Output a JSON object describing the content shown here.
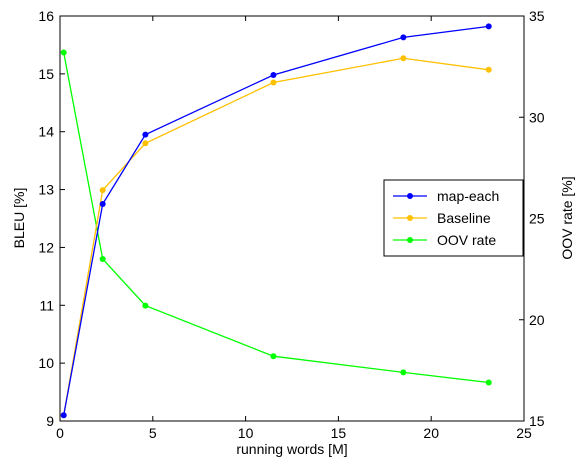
{
  "chart_data": {
    "type": "line",
    "xlabel": "running words [M]",
    "ylabel_left": "BLEU [%]",
    "ylabel_right": "OOV rate [%]",
    "xlim": [
      0,
      25
    ],
    "ylim_left": [
      9,
      16
    ],
    "ylim_right": [
      15,
      35
    ],
    "x_ticks": [
      "0",
      "5",
      "10",
      "15",
      "20",
      "25"
    ],
    "y_ticks_left": [
      "9",
      "10",
      "11",
      "12",
      "13",
      "14",
      "15",
      "16"
    ],
    "y_ticks_right": [
      "15",
      "20",
      "25",
      "30",
      "35"
    ],
    "grid": false,
    "legend_position": "center-right",
    "series": [
      {
        "name": "map-each",
        "color": "#0000ff",
        "axis": "left",
        "x": [
          0.2,
          2.3,
          4.6,
          11.5,
          18.5,
          23.1
        ],
        "y": [
          9.1,
          12.75,
          13.95,
          14.98,
          15.63,
          15.82
        ]
      },
      {
        "name": "Baseline",
        "color": "#ffc000",
        "axis": "left",
        "x": [
          0.2,
          2.3,
          4.6,
          11.5,
          18.5,
          23.1
        ],
        "y": [
          9.1,
          12.99,
          13.8,
          14.85,
          15.27,
          15.07
        ]
      },
      {
        "name": "OOV rate",
        "color": "#00ff00",
        "axis": "right",
        "x": [
          0.2,
          2.3,
          4.6,
          11.5,
          18.5,
          23.1
        ],
        "y": [
          33.2,
          23.0,
          20.7,
          18.2,
          17.4,
          16.9
        ]
      }
    ]
  }
}
